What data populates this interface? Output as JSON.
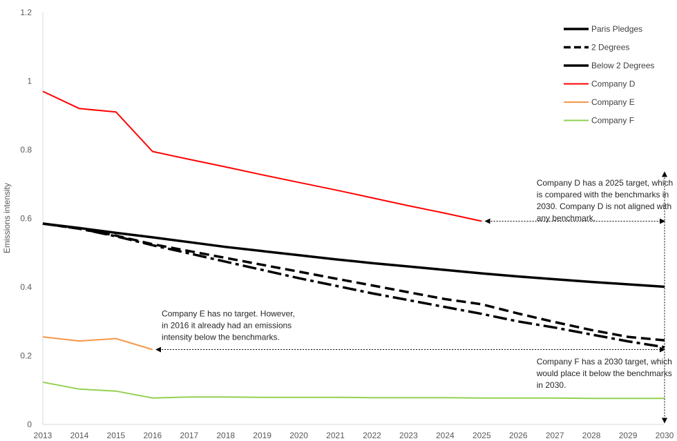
{
  "chart_data": {
    "type": "line",
    "ylabel": "Emissions intensity",
    "xlabel": "",
    "x": [
      2013,
      2014,
      2015,
      2016,
      2017,
      2018,
      2019,
      2020,
      2021,
      2022,
      2023,
      2024,
      2025,
      2026,
      2027,
      2028,
      2029,
      2030
    ],
    "ylim": [
      0,
      1.2
    ],
    "yticks": [
      "0",
      "0.2",
      "0.4",
      "0.6",
      "0.8",
      "1",
      "1.2"
    ],
    "grid": false,
    "legend_position": "top-right",
    "series": [
      {
        "name": "Paris Pledges",
        "color": "#000000",
        "style": "solid",
        "width": 3.5,
        "values": [
          0.585,
          0.572,
          0.558,
          0.545,
          0.531,
          0.517,
          0.505,
          0.493,
          0.481,
          0.47,
          0.46,
          0.45,
          0.44,
          0.431,
          0.423,
          0.415,
          0.408,
          0.401
        ]
      },
      {
        "name": "2 Degrees",
        "color": "#000000",
        "style": "dashed",
        "width": 3.5,
        "values": [
          0.585,
          0.57,
          0.55,
          0.525,
          0.505,
          0.485,
          0.465,
          0.445,
          0.425,
          0.405,
          0.385,
          0.365,
          0.35,
          0.323,
          0.298,
          0.275,
          0.255,
          0.245
        ]
      },
      {
        "name": "Below 2 Degrees",
        "color": "#000000",
        "style": "dashdot",
        "width": 3.5,
        "values": [
          0.585,
          0.57,
          0.548,
          0.522,
          0.498,
          0.474,
          0.45,
          0.426,
          0.404,
          0.382,
          0.362,
          0.342,
          0.322,
          0.3,
          0.282,
          0.262,
          0.242,
          0.225
        ]
      },
      {
        "name": "Company D",
        "color": "#ff0000",
        "style": "solid",
        "width": 2,
        "values": [
          0.97,
          0.92,
          0.91,
          0.795,
          0.772,
          0.75,
          0.727,
          0.705,
          0.683,
          0.66,
          0.637,
          0.615,
          0.592,
          null,
          null,
          null,
          null,
          null
        ]
      },
      {
        "name": "Company E",
        "color": "#f79646",
        "style": "solid",
        "width": 2,
        "values": [
          0.255,
          0.243,
          0.25,
          0.218,
          null,
          null,
          null,
          null,
          null,
          null,
          null,
          null,
          null,
          null,
          null,
          null,
          null,
          null
        ]
      },
      {
        "name": "Company F",
        "color": "#92d050",
        "style": "solid",
        "width": 2,
        "values": [
          0.123,
          0.103,
          0.097,
          0.077,
          0.08,
          0.08,
          0.079,
          0.079,
          0.079,
          0.078,
          0.078,
          0.078,
          0.077,
          0.077,
          0.077,
          0.076,
          0.076,
          0.076
        ]
      }
    ],
    "annotations": [
      {
        "id": "company-d-note",
        "lines": [
          "Company D has a 2025 target, which",
          "is compared with the benchmarks in",
          "2030. Company D is not aligned with",
          "any benchmark."
        ],
        "anchor_x": 2026.5,
        "anchor_y": 0.695
      },
      {
        "id": "company-e-note",
        "lines": [
          "Company E has no target. However,",
          "in 2016 it already had an emissions",
          "intensity below the benchmarks."
        ],
        "anchor_x": 2016.25,
        "anchor_y": 0.315
      },
      {
        "id": "company-f-note",
        "lines": [
          "Company F has a 2030 target, which",
          "would place it below the benchmarks",
          "in 2030."
        ],
        "anchor_x": 2026.5,
        "anchor_y": 0.175
      }
    ],
    "arrows": [
      {
        "id": "arrow-d-horizontal",
        "x1": 2025.1,
        "y1": 0.592,
        "x2": 2030,
        "y2": 0.592
      },
      {
        "id": "arrow-e-horizontal",
        "x1": 2016.1,
        "y1": 0.218,
        "x2": 2030,
        "y2": 0.218
      },
      {
        "id": "arrow-vertical-2030",
        "x1": 2030,
        "y1": 0.735,
        "x2": 2030,
        "y2": 0.005
      }
    ]
  }
}
